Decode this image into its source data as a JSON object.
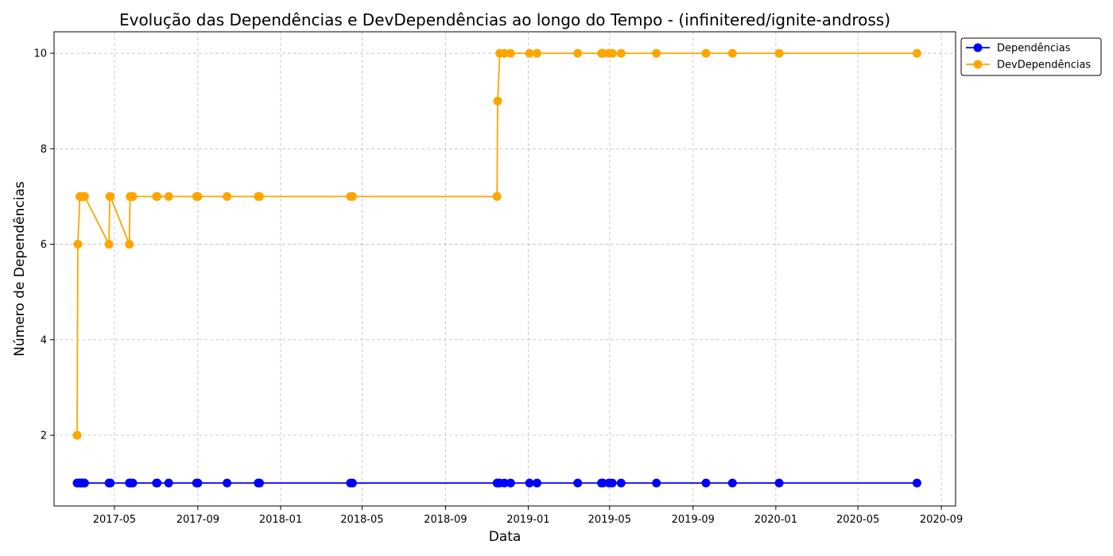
{
  "chart_data": {
    "type": "line",
    "title": "Evolução das Dependências e DevDependências ao longo do Tempo - (infinitered/ignite-andross)",
    "xlabel": "Data",
    "ylabel": "Número de Dependências",
    "x_range": [
      "2017-02-01",
      "2020-09-22"
    ],
    "ylim": [
      0.52,
      10.45
    ],
    "grid": true,
    "legend_position": "outside-top-right",
    "x_ticks": [
      {
        "date": "2017-05-01",
        "label": "2017-05"
      },
      {
        "date": "2017-09-01",
        "label": "2017-09"
      },
      {
        "date": "2018-01-01",
        "label": "2018-01"
      },
      {
        "date": "2018-05-01",
        "label": "2018-05"
      },
      {
        "date": "2018-09-01",
        "label": "2018-09"
      },
      {
        "date": "2019-01-01",
        "label": "2019-01"
      },
      {
        "date": "2019-05-01",
        "label": "2019-05"
      },
      {
        "date": "2019-09-01",
        "label": "2019-09"
      },
      {
        "date": "2020-01-01",
        "label": "2020-01"
      },
      {
        "date": "2020-05-01",
        "label": "2020-05"
      },
      {
        "date": "2020-09-01",
        "label": "2020-09"
      }
    ],
    "y_ticks": [
      2,
      4,
      6,
      8,
      10
    ],
    "x": [
      "2017-03-07",
      "2017-03-08",
      "2017-03-11",
      "2017-03-12",
      "2017-03-14",
      "2017-03-15",
      "2017-03-17",
      "2017-03-18",
      "2017-04-23",
      "2017-04-24",
      "2017-04-25",
      "2017-05-23",
      "2017-05-24",
      "2017-05-26",
      "2017-05-28",
      "2017-07-02",
      "2017-07-03",
      "2017-07-20",
      "2017-08-30",
      "2017-09-01",
      "2017-10-14",
      "2017-11-29",
      "2017-12-01",
      "2018-04-14",
      "2018-04-17",
      "2018-11-16",
      "2018-11-17",
      "2018-11-20",
      "2018-11-27",
      "2018-12-06",
      "2019-01-03",
      "2019-01-14",
      "2019-03-15",
      "2019-04-19",
      "2019-04-21",
      "2019-04-30",
      "2019-05-05",
      "2019-05-18",
      "2019-07-09",
      "2019-09-20",
      "2019-10-29",
      "2020-01-06",
      "2020-07-27"
    ],
    "series": [
      {
        "name": "Dependências",
        "color": "#0000ff",
        "values": [
          1,
          1,
          1,
          1,
          1,
          1,
          1,
          1,
          1,
          1,
          1,
          1,
          1,
          1,
          1,
          1,
          1,
          1,
          1,
          1,
          1,
          1,
          1,
          1,
          1,
          1,
          1,
          1,
          1,
          1,
          1,
          1,
          1,
          1,
          1,
          1,
          1,
          1,
          1,
          1,
          1,
          1,
          1
        ]
      },
      {
        "name": "DevDependências",
        "color": "#ffa500",
        "values": [
          2,
          6,
          7,
          7,
          7,
          7,
          7,
          7,
          6,
          7,
          7,
          6,
          7,
          7,
          7,
          7,
          7,
          7,
          7,
          7,
          7,
          7,
          7,
          7,
          7,
          7,
          9,
          10,
          10,
          10,
          10,
          10,
          10,
          10,
          10,
          10,
          10,
          10,
          10,
          10,
          10,
          10,
          10
        ]
      }
    ]
  }
}
